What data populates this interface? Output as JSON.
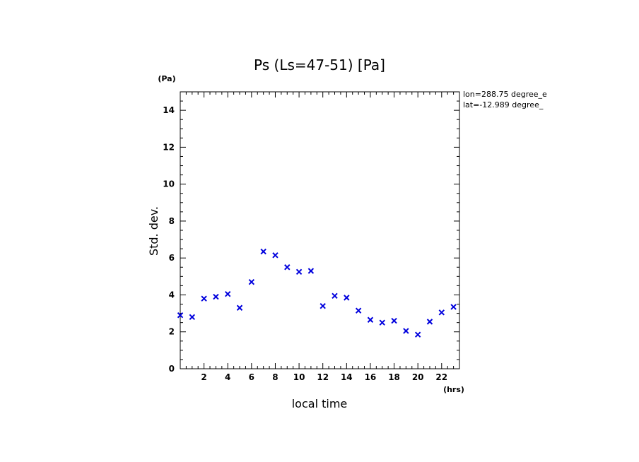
{
  "chart_data": {
    "type": "scatter",
    "title": "Ps (Ls=47-51) [Pa]",
    "xlabel": "local time",
    "ylabel": "Std. dev.",
    "x_unit": "(hrs)",
    "y_unit": "(Pa)",
    "xlim": [
      0,
      23.5
    ],
    "ylim": [
      0,
      15
    ],
    "x_ticks": [
      2,
      4,
      6,
      8,
      10,
      12,
      14,
      16,
      18,
      20,
      22
    ],
    "y_ticks": [
      0,
      2,
      4,
      6,
      8,
      10,
      12,
      14
    ],
    "grid": false,
    "marker": "x",
    "marker_color": "#0000dd",
    "annotations": [
      "lon=288.75 degree_e",
      "lat=-12.989 degree_"
    ],
    "series": [
      {
        "x": [
          0,
          1,
          2,
          3,
          4,
          5,
          6,
          7,
          8,
          9,
          10,
          11,
          12,
          13,
          14,
          15,
          16,
          17,
          18,
          19,
          20,
          21,
          22,
          23
        ],
        "y": [
          2.9,
          2.8,
          3.8,
          3.9,
          4.05,
          3.3,
          4.7,
          6.35,
          6.15,
          5.5,
          5.25,
          5.3,
          3.4,
          3.95,
          3.85,
          3.15,
          2.65,
          2.5,
          2.6,
          2.05,
          1.85,
          2.55,
          3.05,
          3.35
        ]
      }
    ]
  }
}
